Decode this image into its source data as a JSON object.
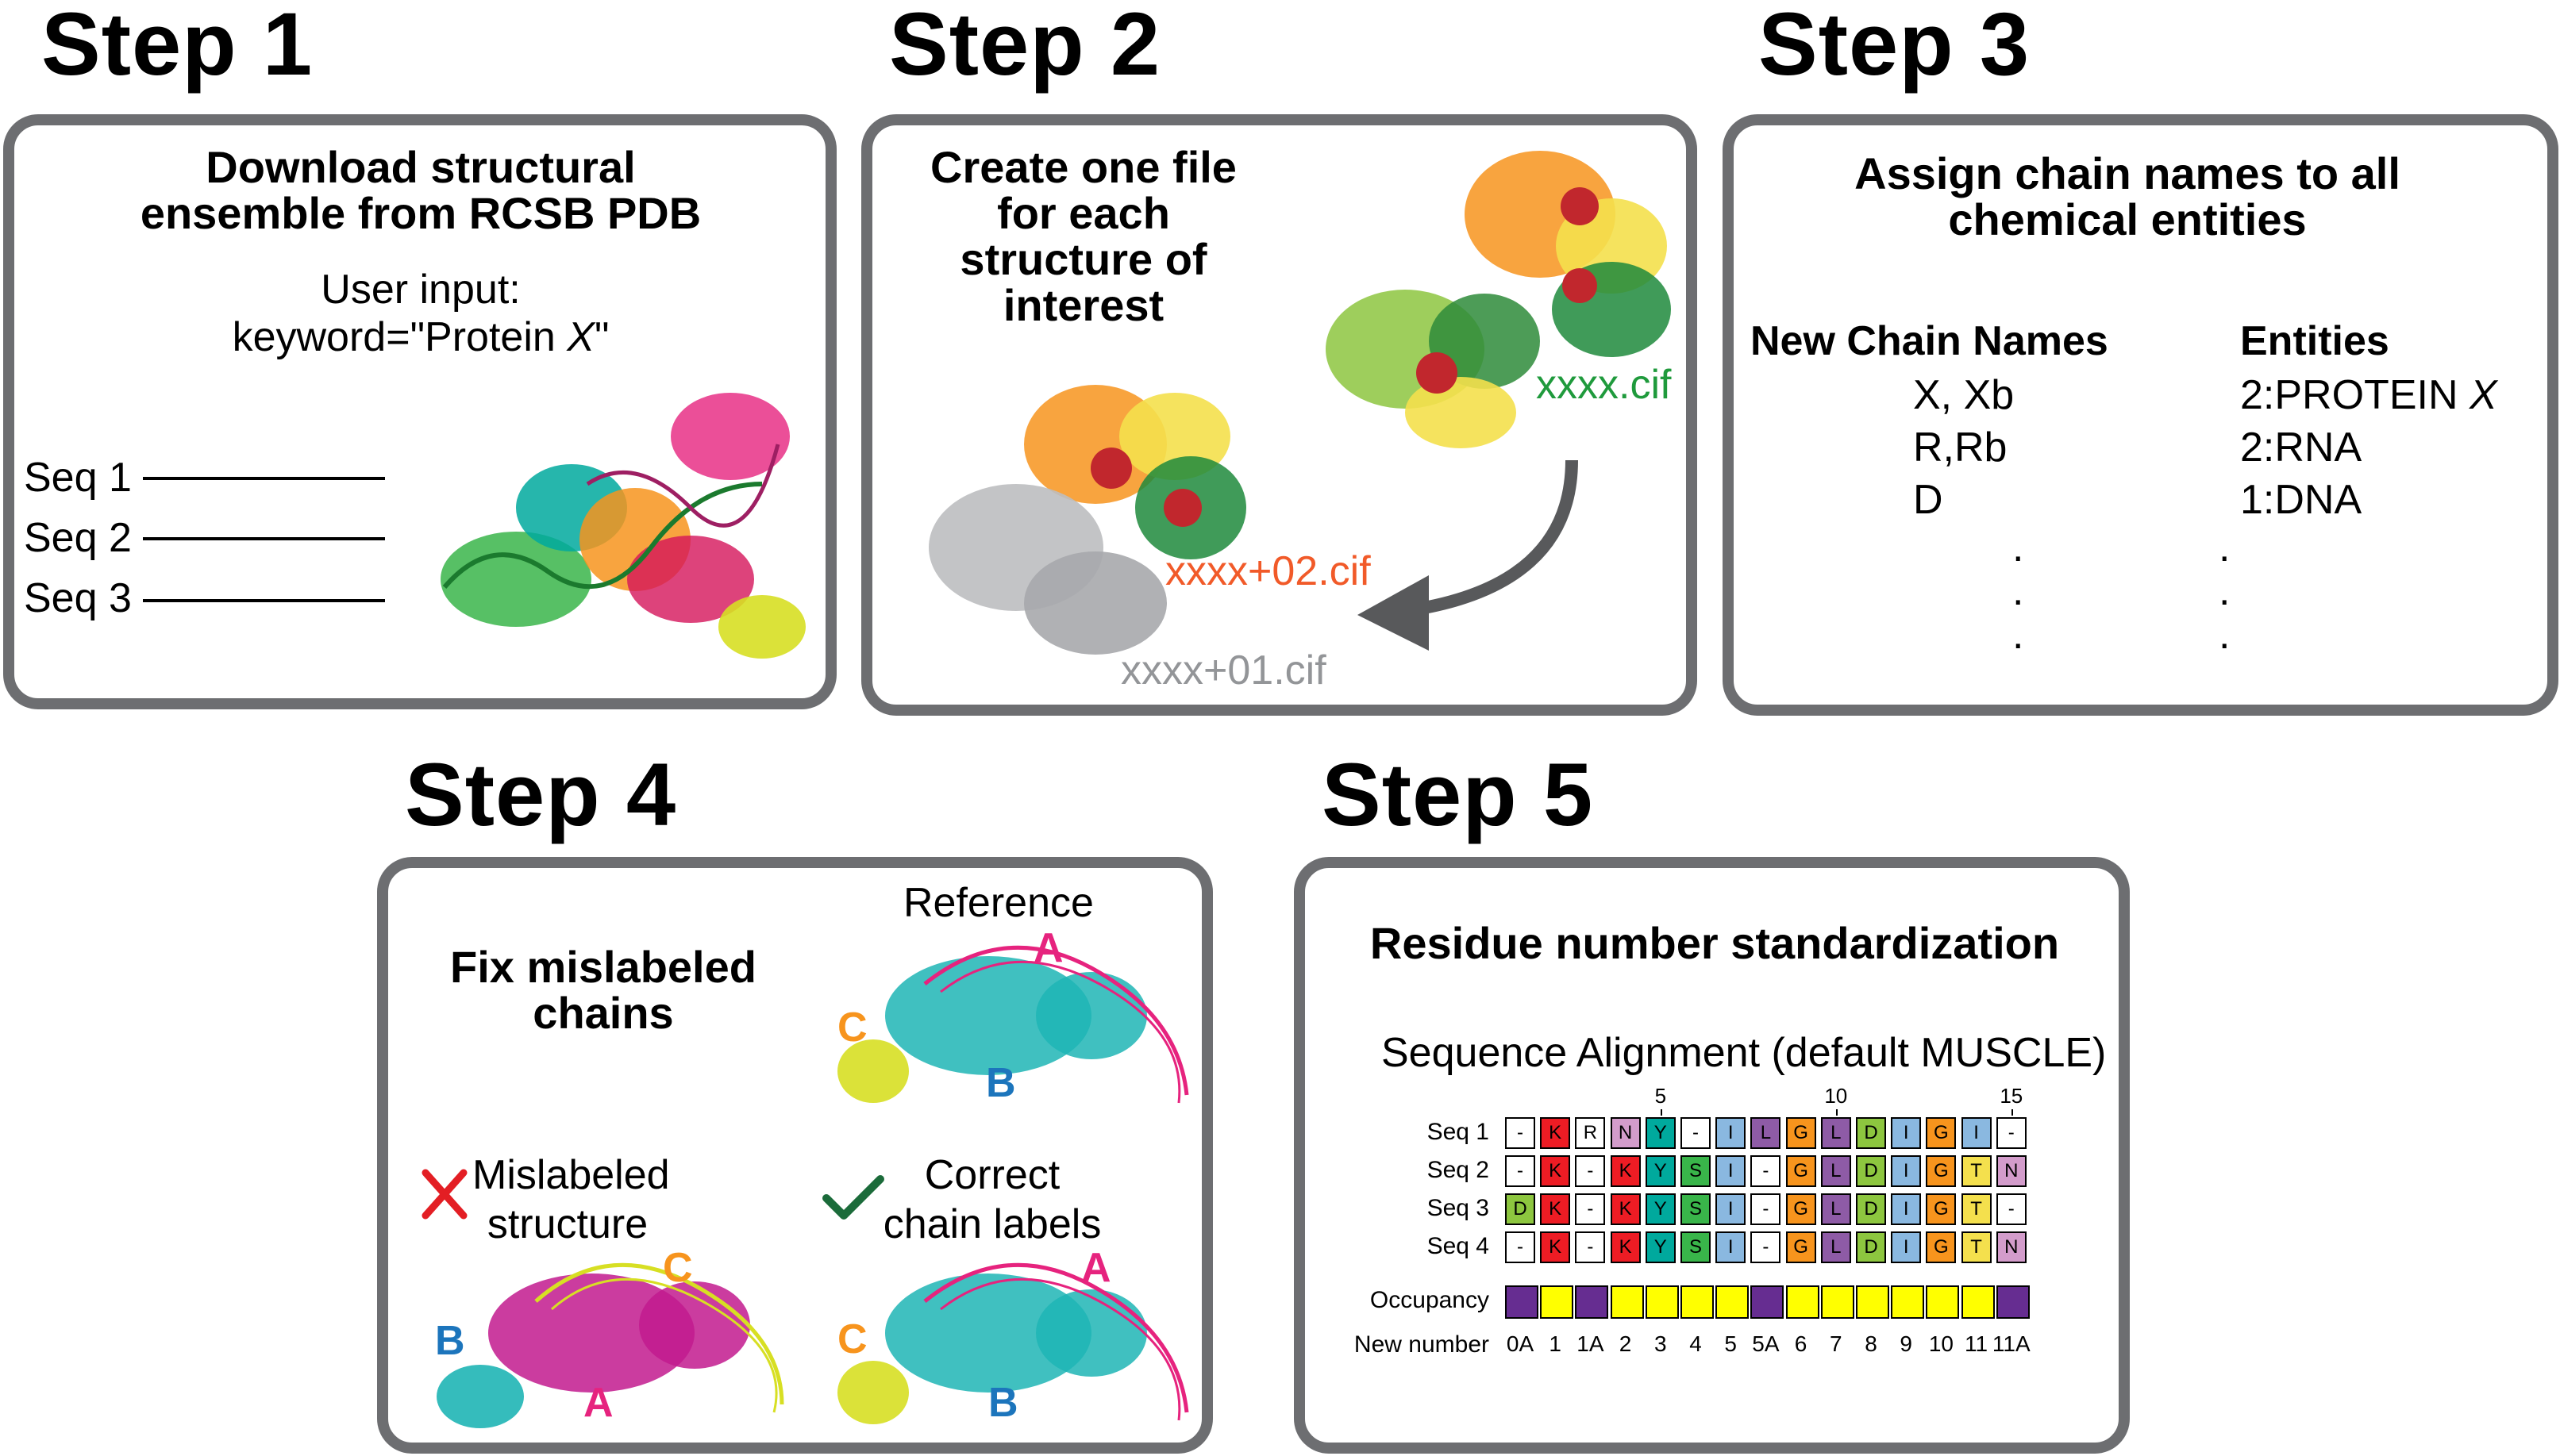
{
  "steps": [
    {
      "title": "Step 1",
      "heading": "Download structural ensemble from RCSB PDB",
      "user_input_label": "User input:",
      "keyword_text": "keyword=\"Protein ",
      "keyword_var": "X",
      "keyword_close": "\"",
      "seq_labels": [
        "Seq 1",
        "Seq 2",
        "Seq 3"
      ]
    },
    {
      "title": "Step 2",
      "heading": "Create one file for each structure of interest",
      "files": [
        {
          "name": "xxxx.cif",
          "color": "#1f9a3c"
        },
        {
          "name": "xxxx+02.cif",
          "color": "#f15a29"
        },
        {
          "name": "xxxx+01.cif",
          "color": "#939598"
        }
      ]
    },
    {
      "title": "Step 3",
      "heading": "Assign chain names to all chemical entities",
      "col1_header": "New Chain Names",
      "col2_header": "Entities",
      "rows": [
        {
          "chain": "X, Xb",
          "entity": "2:PROTEIN ",
          "entity_var": "X"
        },
        {
          "chain": "R,Rb",
          "entity": "2:RNA",
          "entity_var": ""
        },
        {
          "chain": "D",
          "entity": "1:DNA",
          "entity_var": ""
        }
      ],
      "dots": "."
    },
    {
      "title": "Step 4",
      "heading": "Fix mislabeled chains",
      "reference_label": "Reference",
      "mislabeled_label": "Mislabeled structure",
      "correct_label": "Correct chain labels",
      "chain_a": "A",
      "chain_b": "B",
      "chain_c": "C",
      "colors": {
        "A": "#e6237e",
        "B": "#1c75bc",
        "C": "#f7941d",
        "cross": "#e31e24",
        "check": "#1b6b3a"
      }
    },
    {
      "title": "Step 5",
      "heading": "Residue number standardization",
      "alignment_title": "Sequence Alignment (default MUSCLE)",
      "ruler": [
        "5",
        "10",
        "15"
      ],
      "sequences": [
        {
          "label": "Seq 1",
          "residues": [
            "-",
            "K",
            "R",
            "N",
            "Y",
            "-",
            "I",
            "L",
            "G",
            "L",
            "D",
            "I",
            "G",
            "I",
            "-"
          ]
        },
        {
          "label": "Seq 2",
          "residues": [
            "-",
            "K",
            "-",
            "K",
            "Y",
            "S",
            "I",
            "-",
            "G",
            "L",
            "D",
            "I",
            "G",
            "T",
            "N"
          ]
        },
        {
          "label": "Seq 3",
          "residues": [
            "D",
            "K",
            "-",
            "K",
            "Y",
            "S",
            "I",
            "-",
            "G",
            "L",
            "D",
            "I",
            "G",
            "T",
            "-"
          ]
        },
        {
          "label": "Seq 4",
          "residues": [
            "-",
            "K",
            "-",
            "K",
            "Y",
            "S",
            "I",
            "-",
            "G",
            "L",
            "D",
            "I",
            "G",
            "T",
            "N"
          ]
        }
      ],
      "occupancy_label": "Occupancy",
      "occupancy": [
        "low",
        "high",
        "low",
        "high",
        "high",
        "high",
        "high",
        "low",
        "high",
        "high",
        "high",
        "high",
        "high",
        "high",
        "low"
      ],
      "new_number_label": "New number",
      "new_numbers": [
        "0A",
        "1",
        "1A",
        "2",
        "3",
        "4",
        "5",
        "5A",
        "6",
        "7",
        "8",
        "9",
        "10",
        "11",
        "11A"
      ],
      "residue_colors": {
        "K": "#ed1c24",
        "R": "#ffffff",
        "N": "#d39ccb",
        "Y": "#00a99d",
        "S": "#39b54a",
        "I": "#8ab8e0",
        "L": "#8e5ba6",
        "G": "#f7941d",
        "D": "#8dc63f",
        "T": "#f4e04d",
        "-": "#ffffff"
      },
      "occupancy_colors": {
        "low": "#662d91",
        "high": "#ffff00"
      }
    }
  ]
}
